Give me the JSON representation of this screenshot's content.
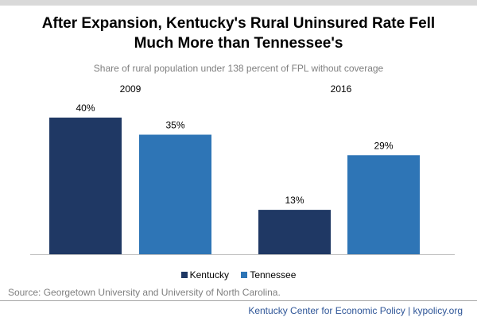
{
  "title_line1": "After Expansion, Kentucky's Rural Uninsured Rate Fell",
  "title_line2": "Much More than Tennessee's",
  "subtitle": "Share of rural population under 138 percent of FPL without coverage",
  "source": "Source: Georgetown University and University of North Carolina.",
  "footer": "Kentucky Center for Economic Policy | kypolicy.org",
  "colors": {
    "kentucky": "#1f3864",
    "tennessee": "#2e75b6"
  },
  "chart_data": {
    "type": "bar",
    "categories": [
      "2009",
      "2016"
    ],
    "series": [
      {
        "name": "Kentucky",
        "values": [
          40,
          13
        ]
      },
      {
        "name": "Tennessee",
        "values": [
          35,
          29
        ]
      }
    ],
    "data_labels": [
      [
        "40%",
        "13%"
      ],
      [
        "35%",
        "29%"
      ]
    ],
    "ylim": [
      0,
      40
    ],
    "grid": false,
    "legend": "bottom"
  }
}
